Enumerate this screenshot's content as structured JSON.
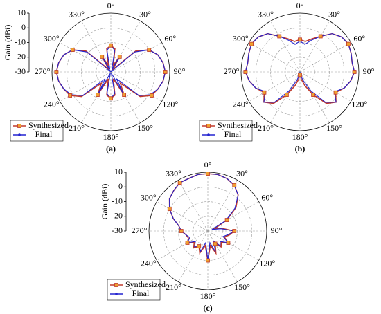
{
  "chart_data": [
    {
      "type": "polar",
      "caption": "(a)",
      "ylabel": "Gain (dBi)",
      "ylim": [
        -30,
        10
      ],
      "yticks": [
        -30,
        -20,
        -10,
        0,
        10
      ],
      "show_radial_labels": true,
      "legend": "lower left",
      "angle_ticks": [
        {
          "value": 0,
          "label": "0°"
        },
        {
          "value": 30,
          "label": "30°"
        },
        {
          "value": 60,
          "label": "60°"
        },
        {
          "value": 90,
          "label": "90°"
        },
        {
          "value": 120,
          "label": "120°"
        },
        {
          "value": 150,
          "label": "150°"
        },
        {
          "value": 180,
          "label": "180°"
        },
        {
          "value": 210,
          "label": "210°"
        },
        {
          "value": 240,
          "label": "240°"
        },
        {
          "value": 270,
          "label": "270°"
        },
        {
          "value": 300,
          "label": "300°"
        },
        {
          "value": 330,
          "label": "330°"
        }
      ],
      "x": [
        0,
        10,
        20,
        30,
        40,
        50,
        60,
        70,
        80,
        90,
        100,
        110,
        120,
        130,
        140,
        150,
        160,
        170,
        180,
        190,
        200,
        210,
        220,
        230,
        240,
        250,
        260,
        270,
        280,
        290,
        300,
        310,
        320,
        330,
        340,
        350
      ],
      "series": [
        {
          "name": "Synthesized",
          "color": "#c0392b",
          "values": [
            -12,
            -14,
            -25,
            -18,
            -28,
            -8,
            0,
            4,
            6,
            7,
            6,
            4,
            2,
            -4,
            -20,
            -12,
            -25,
            -14,
            -12,
            -14,
            -25,
            -12,
            -20,
            -4,
            2,
            4,
            6,
            7,
            6,
            4,
            0,
            -8,
            -28,
            -18,
            -25,
            -14
          ]
        },
        {
          "name": "Final",
          "color": "#2424d0",
          "values": [
            -12,
            -15,
            -28,
            -17,
            -30,
            -9,
            0,
            4,
            6,
            7,
            6,
            4,
            1,
            -5,
            -24,
            -13,
            -29,
            -15,
            -12,
            -15,
            -29,
            -13,
            -24,
            -5,
            1,
            4,
            6,
            7,
            6,
            4,
            0,
            -9,
            -30,
            -17,
            -28,
            -15
          ]
        }
      ]
    },
    {
      "type": "polar",
      "caption": "(b)",
      "ylim": [
        -30,
        10
      ],
      "yticks": [
        -30,
        -20,
        -10,
        0,
        10
      ],
      "show_radial_labels": false,
      "legend": "lower left",
      "angle_ticks": [
        {
          "value": 0,
          "label": "0°"
        },
        {
          "value": 30,
          "label": "30°"
        },
        {
          "value": 60,
          "label": "60°"
        },
        {
          "value": 90,
          "label": "90°"
        },
        {
          "value": 120,
          "label": "120°"
        },
        {
          "value": 150,
          "label": "150°"
        },
        {
          "value": 180,
          "label": "180°"
        },
        {
          "value": 210,
          "label": "210°"
        },
        {
          "value": 240,
          "label": "240°"
        },
        {
          "value": 270,
          "label": "270°"
        },
        {
          "value": 300,
          "label": "300°"
        },
        {
          "value": 330,
          "label": "330°"
        }
      ],
      "x": [
        0,
        10,
        20,
        30,
        40,
        50,
        60,
        70,
        80,
        90,
        100,
        110,
        120,
        130,
        140,
        150,
        160,
        170,
        180,
        190,
        200,
        210,
        220,
        230,
        240,
        250,
        260,
        270,
        280,
        290,
        300,
        310,
        320,
        330,
        340,
        350
      ],
      "series": [
        {
          "name": "Synthesized",
          "color": "#c0392b",
          "values": [
            -8,
            -9,
            -6,
            -2,
            4,
            7,
            8,
            7,
            6,
            7,
            5,
            2,
            -2,
            2,
            -2,
            -12,
            -20,
            -25,
            -28,
            -25,
            -20,
            -12,
            -2,
            2,
            -2,
            2,
            5,
            7,
            6,
            7,
            8,
            7,
            4,
            -2,
            -6,
            -9
          ]
        },
        {
          "name": "Final",
          "color": "#2424d0",
          "values": [
            -9,
            -11,
            -7,
            -2,
            4,
            7,
            8,
            7,
            6,
            7,
            5,
            2,
            -3,
            2,
            -3,
            -15,
            -24,
            -28,
            -30,
            -28,
            -24,
            -15,
            -3,
            2,
            -3,
            2,
            5,
            7,
            6,
            7,
            8,
            7,
            4,
            -2,
            -7,
            -11
          ]
        }
      ]
    },
    {
      "type": "polar",
      "caption": "(c)",
      "ylabel": "Gain (dBi)",
      "ylim": [
        -30,
        10
      ],
      "yticks": [
        -30,
        -20,
        -10,
        0,
        10
      ],
      "show_radial_labels": true,
      "legend": "lower left",
      "angle_ticks": [
        {
          "value": 0,
          "label": "0°"
        },
        {
          "value": 30,
          "label": "30°"
        },
        {
          "value": 60,
          "label": "60°"
        },
        {
          "value": 90,
          "label": "90°"
        },
        {
          "value": 120,
          "label": "120°"
        },
        {
          "value": 150,
          "label": "150°"
        },
        {
          "value": 180,
          "label": "180°"
        },
        {
          "value": 210,
          "label": "210°"
        },
        {
          "value": 240,
          "label": "240°"
        },
        {
          "value": 270,
          "label": "270°"
        },
        {
          "value": 300,
          "label": "300°"
        },
        {
          "value": 330,
          "label": "330°"
        }
      ],
      "x": [
        0,
        10,
        20,
        30,
        40,
        50,
        60,
        70,
        80,
        90,
        100,
        110,
        120,
        130,
        140,
        150,
        160,
        170,
        180,
        190,
        200,
        210,
        220,
        230,
        240,
        250,
        260,
        270,
        280,
        290,
        300,
        310,
        320,
        330,
        340,
        350
      ],
      "series": [
        {
          "name": "Synthesized",
          "color": "#c0392b",
          "values": [
            9,
            9,
            8,
            6,
            2,
            -5,
            -15,
            -25,
            -20,
            -12,
            -15,
            -18,
            -14,
            -18,
            -16,
            -20,
            -14,
            -20,
            -10,
            -20,
            -14,
            -18,
            -15,
            -18,
            -14,
            -16,
            -15,
            -12,
            -10,
            -5,
            0,
            4,
            6,
            8,
            8,
            9
          ]
        },
        {
          "name": "Final",
          "color": "#2424d0",
          "values": [
            9,
            9,
            8,
            6,
            2,
            -6,
            -16,
            -27,
            -21,
            -12,
            -16,
            -19,
            -14,
            -19,
            -17,
            -22,
            -15,
            -22,
            -10,
            -22,
            -15,
            -19,
            -16,
            -19,
            -14,
            -17,
            -15,
            -12,
            -10,
            -5,
            0,
            4,
            6,
            8,
            8,
            9
          ]
        }
      ]
    }
  ]
}
